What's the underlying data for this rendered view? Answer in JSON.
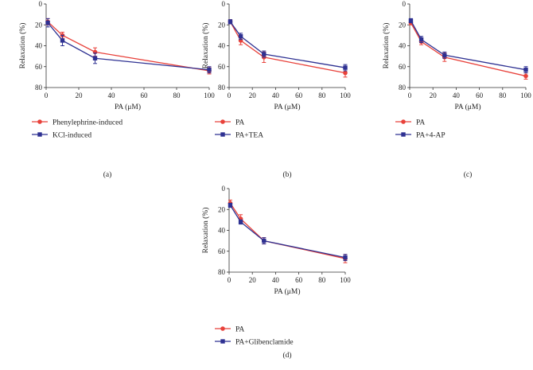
{
  "chart_data": [
    {
      "type": "line",
      "panel_label": "(a)",
      "xlabel": "PA (μM)",
      "ylabel": "Relaxation (%)",
      "xlim": [
        0,
        100
      ],
      "ylim": [
        0,
        80
      ],
      "y_inverted": true,
      "xticks": [
        0,
        20,
        40,
        60,
        80,
        100
      ],
      "yticks": [
        0,
        20,
        40,
        60,
        80
      ],
      "legend_position": "bottom-left",
      "series": [
        {
          "name": "Phenylephrine-induced",
          "color": "#e8413a",
          "marker": "circle",
          "x": [
            1,
            10,
            30,
            100
          ],
          "y": [
            17,
            30,
            46,
            64
          ],
          "err": [
            3,
            3,
            4,
            3
          ]
        },
        {
          "name": "KCl-induced",
          "color": "#2e3192",
          "marker": "square",
          "x": [
            1,
            10,
            30,
            100
          ],
          "y": [
            18,
            35,
            52,
            63
          ],
          "err": [
            4,
            5,
            5,
            3
          ]
        }
      ]
    },
    {
      "type": "line",
      "panel_label": "(b)",
      "xlabel": "PA (μM)",
      "ylabel": "Relaxation (%)",
      "xlim": [
        0,
        100
      ],
      "ylim": [
        0,
        80
      ],
      "y_inverted": true,
      "xticks": [
        0,
        20,
        40,
        60,
        80,
        100
      ],
      "yticks": [
        0,
        20,
        40,
        60,
        80
      ],
      "legend_position": "bottom-left",
      "series": [
        {
          "name": "PA",
          "color": "#e8413a",
          "marker": "circle",
          "x": [
            1,
            10,
            30,
            100
          ],
          "y": [
            17,
            35,
            51,
            66
          ],
          "err": [
            2,
            4,
            5,
            4
          ]
        },
        {
          "name": "PA+TEA",
          "color": "#2e3192",
          "marker": "square",
          "x": [
            1,
            10,
            30,
            100
          ],
          "y": [
            17,
            31,
            48,
            61
          ],
          "err": [
            2,
            3,
            3,
            3
          ]
        }
      ]
    },
    {
      "type": "line",
      "panel_label": "(c)",
      "xlabel": "PA (μM)",
      "ylabel": "Relaxation (%)",
      "xlim": [
        0,
        100
      ],
      "ylim": [
        0,
        80
      ],
      "y_inverted": true,
      "xticks": [
        0,
        20,
        40,
        60,
        80,
        100
      ],
      "yticks": [
        0,
        20,
        40,
        60,
        80
      ],
      "legend_position": "bottom-left",
      "series": [
        {
          "name": "PA",
          "color": "#e8413a",
          "marker": "circle",
          "x": [
            1,
            10,
            30,
            100
          ],
          "y": [
            18,
            36,
            51,
            69
          ],
          "err": [
            2,
            3,
            4,
            3
          ]
        },
        {
          "name": "PA+4-AP",
          "color": "#2e3192",
          "marker": "square",
          "x": [
            1,
            10,
            30,
            100
          ],
          "y": [
            16,
            34,
            49,
            63
          ],
          "err": [
            2,
            3,
            3,
            3
          ]
        }
      ]
    },
    {
      "type": "line",
      "panel_label": "(d)",
      "xlabel": "PA (μM)",
      "ylabel": "Relaxation (%)",
      "xlim": [
        0,
        100
      ],
      "ylim": [
        0,
        80
      ],
      "y_inverted": true,
      "xticks": [
        0,
        20,
        40,
        60,
        80,
        100
      ],
      "yticks": [
        0,
        20,
        40,
        60,
        80
      ],
      "legend_position": "bottom-left",
      "series": [
        {
          "name": "PA",
          "color": "#e8413a",
          "marker": "circle",
          "x": [
            1,
            10,
            30,
            100
          ],
          "y": [
            14,
            29,
            50,
            67
          ],
          "err": [
            3,
            4,
            3,
            4
          ]
        },
        {
          "name": "PA+Glibenclamide",
          "color": "#2e3192",
          "marker": "square",
          "x": [
            1,
            10,
            30,
            100
          ],
          "y": [
            16,
            32,
            50,
            66
          ],
          "err": [
            2,
            2,
            3,
            3
          ]
        }
      ]
    }
  ]
}
